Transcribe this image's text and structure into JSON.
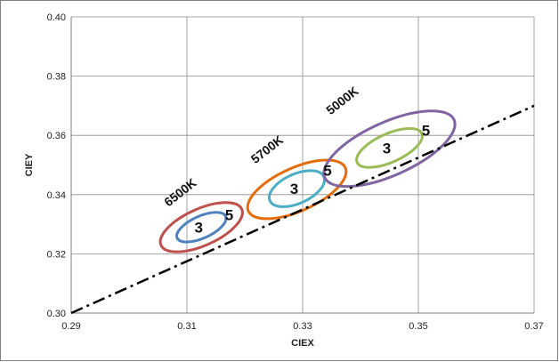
{
  "chart_data": {
    "type": "scatter",
    "title": "",
    "xlabel": "CIEX",
    "ylabel": "CIEY",
    "xlim": [
      0.29,
      0.37
    ],
    "ylim": [
      0.3,
      0.4
    ],
    "x_ticks": [
      "0.29",
      "0.31",
      "0.33",
      "0.35",
      "0.37"
    ],
    "y_ticks": [
      "0.30",
      "0.32",
      "0.34",
      "0.36",
      "0.38",
      "0.40"
    ],
    "grid": true,
    "planckian_locus": {
      "style": "dash-dot",
      "color": "#000000",
      "x": [
        0.29,
        0.37
      ],
      "y": [
        0.3,
        0.37
      ]
    },
    "groups": [
      {
        "label": "6500K",
        "center": [
          0.3125,
          0.329
        ],
        "ellipses": [
          {
            "step": "3",
            "color": "#4f81bd",
            "x": [
              0.308,
              0.317
            ],
            "y": [
              0.323,
              0.335
            ]
          },
          {
            "step": "5",
            "color": "#c0504d",
            "x": [
              0.305,
              0.32
            ],
            "y": [
              0.319,
              0.339
            ]
          }
        ]
      },
      {
        "label": "5700K",
        "center": [
          0.329,
          0.342
        ],
        "ellipses": [
          {
            "step": "3",
            "color": "#4bacc6",
            "x": [
              0.324,
              0.334
            ],
            "y": [
              0.334,
              0.35
            ]
          },
          {
            "step": "5",
            "color": "#e46c0a",
            "x": [
              0.32,
              0.338
            ],
            "y": [
              0.33,
              0.3535
            ]
          }
        ]
      },
      {
        "label": "5000K",
        "center": [
          0.345,
          0.3555
        ],
        "ellipses": [
          {
            "step": "3",
            "color": "#9bbb59",
            "x": [
              0.339,
              0.351
            ],
            "y": [
              0.348,
              0.3635
            ]
          },
          {
            "step": "5",
            "color": "#8064a2",
            "x": [
              0.333,
              0.357
            ],
            "y": [
              0.341,
              0.37
            ]
          }
        ]
      }
    ]
  }
}
